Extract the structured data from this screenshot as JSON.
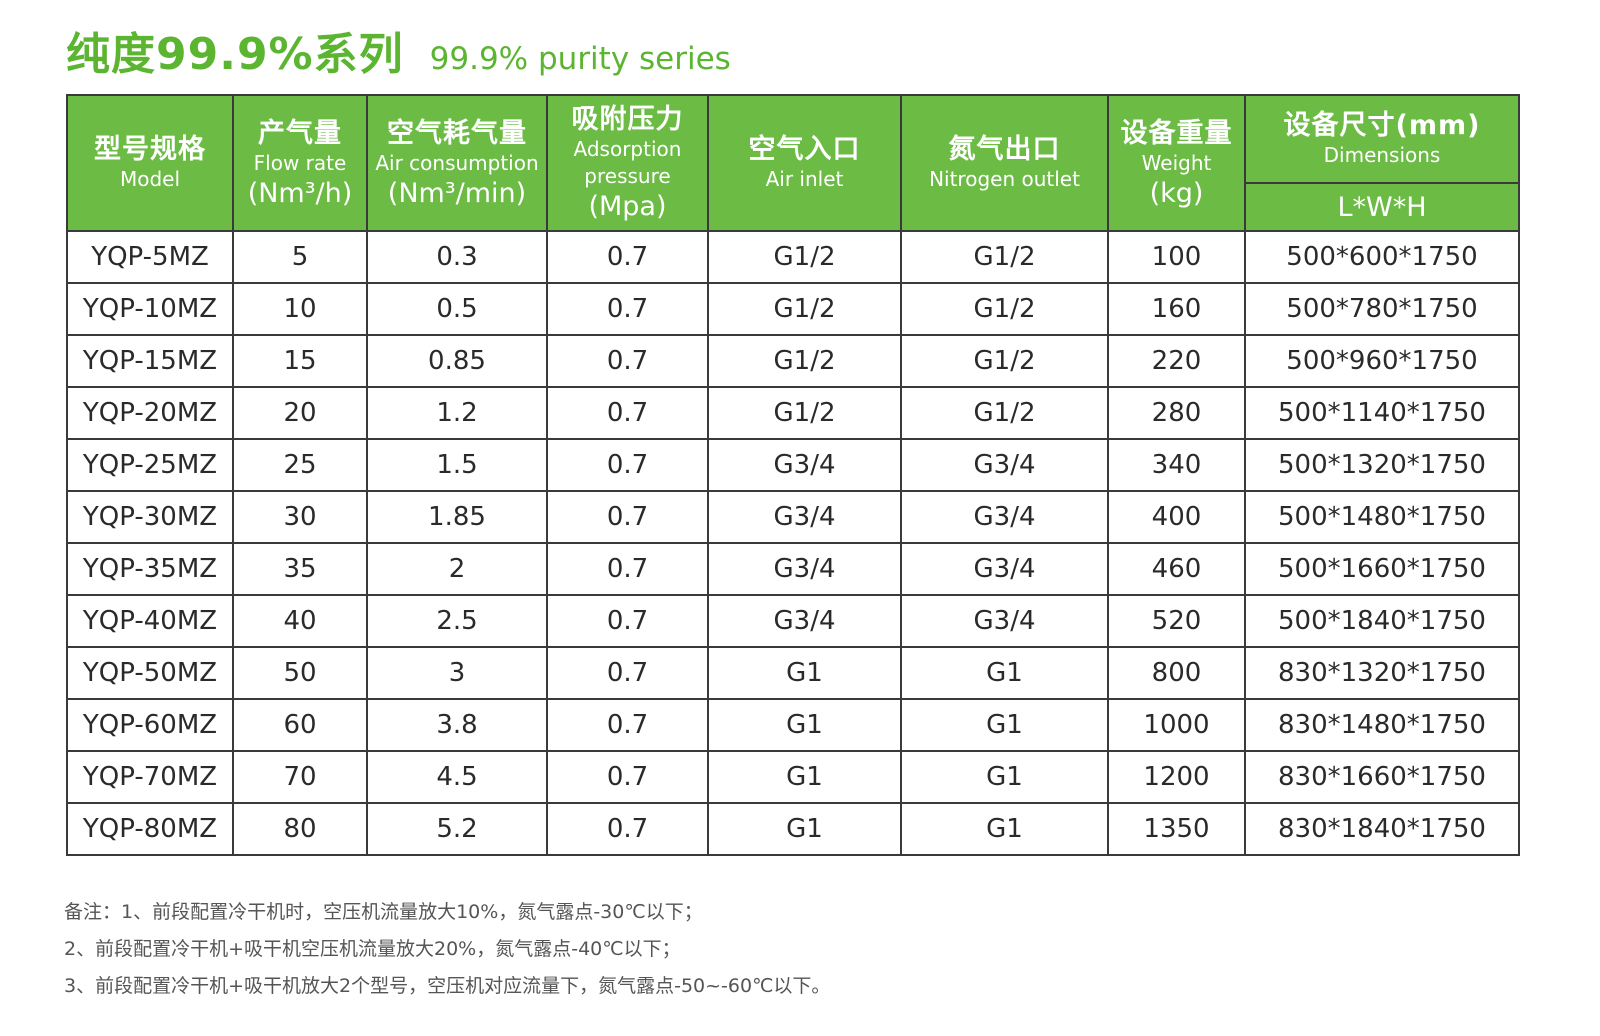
{
  "title": {
    "cn": "纯度99.9%系列",
    "en": "99.9% purity series"
  },
  "headers": {
    "model": {
      "cn": "型号规格",
      "en": "Model"
    },
    "flow": {
      "cn": "产气量",
      "en": "Flow rate",
      "unit": "(Nm³/h)"
    },
    "air_consumption": {
      "cn": "空气耗气量",
      "en": "Air consumption",
      "unit": "(Nm³/min)"
    },
    "pressure": {
      "cn": "吸附压力",
      "en1": "Adsorption",
      "en2": "pressure",
      "unit": "(Mpa)"
    },
    "air_inlet": {
      "cn": "空气入口",
      "en": "Air inlet"
    },
    "nitrogen_outlet": {
      "cn": "氮气出口",
      "en": "Nitrogen outlet"
    },
    "weight": {
      "cn": "设备重量",
      "en": "Weight",
      "unit": "(kg)"
    },
    "dimensions": {
      "cn": "设备尺寸(mm)",
      "en": "Dimensions",
      "sub": "L*W*H"
    }
  },
  "rows": [
    [
      "YQP-5MZ",
      "5",
      "0.3",
      "0.7",
      "G1/2",
      "G1/2",
      "100",
      "500*600*1750"
    ],
    [
      "YQP-10MZ",
      "10",
      "0.5",
      "0.7",
      "G1/2",
      "G1/2",
      "160",
      "500*780*1750"
    ],
    [
      "YQP-15MZ",
      "15",
      "0.85",
      "0.7",
      "G1/2",
      "G1/2",
      "220",
      "500*960*1750"
    ],
    [
      "YQP-20MZ",
      "20",
      "1.2",
      "0.7",
      "G1/2",
      "G1/2",
      "280",
      "500*1140*1750"
    ],
    [
      "YQP-25MZ",
      "25",
      "1.5",
      "0.7",
      "G3/4",
      "G3/4",
      "340",
      "500*1320*1750"
    ],
    [
      "YQP-30MZ",
      "30",
      "1.85",
      "0.7",
      "G3/4",
      "G3/4",
      "400",
      "500*1480*1750"
    ],
    [
      "YQP-35MZ",
      "35",
      "2",
      "0.7",
      "G3/4",
      "G3/4",
      "460",
      "500*1660*1750"
    ],
    [
      "YQP-40MZ",
      "40",
      "2.5",
      "0.7",
      "G3/4",
      "G3/4",
      "520",
      "500*1840*1750"
    ],
    [
      "YQP-50MZ",
      "50",
      "3",
      "0.7",
      "G1",
      "G1",
      "800",
      "830*1320*1750"
    ],
    [
      "YQP-60MZ",
      "60",
      "3.8",
      "0.7",
      "G1",
      "G1",
      "1000",
      "830*1480*1750"
    ],
    [
      "YQP-70MZ",
      "70",
      "4.5",
      "0.7",
      "G1",
      "G1",
      "1200",
      "830*1660*1750"
    ],
    [
      "YQP-80MZ",
      "80",
      "5.2",
      "0.7",
      "G1",
      "G1",
      "1350",
      "830*1840*1750"
    ]
  ],
  "notes": [
    "备注：1、前段配置冷干机时，空压机流量放大10%，氮气露点-30℃以下；",
    "2、前段配置冷干机+吸干机空压机流量放大20%，氮气露点-40℃以下；",
    "3、前段配置冷干机+吸干机放大2个型号，空压机对应流量下，氮气露点-50~-60℃以下。"
  ],
  "colors": {
    "accent": "#5cb531",
    "header_bg": "#6bbb45",
    "border": "#3a3a3a"
  }
}
